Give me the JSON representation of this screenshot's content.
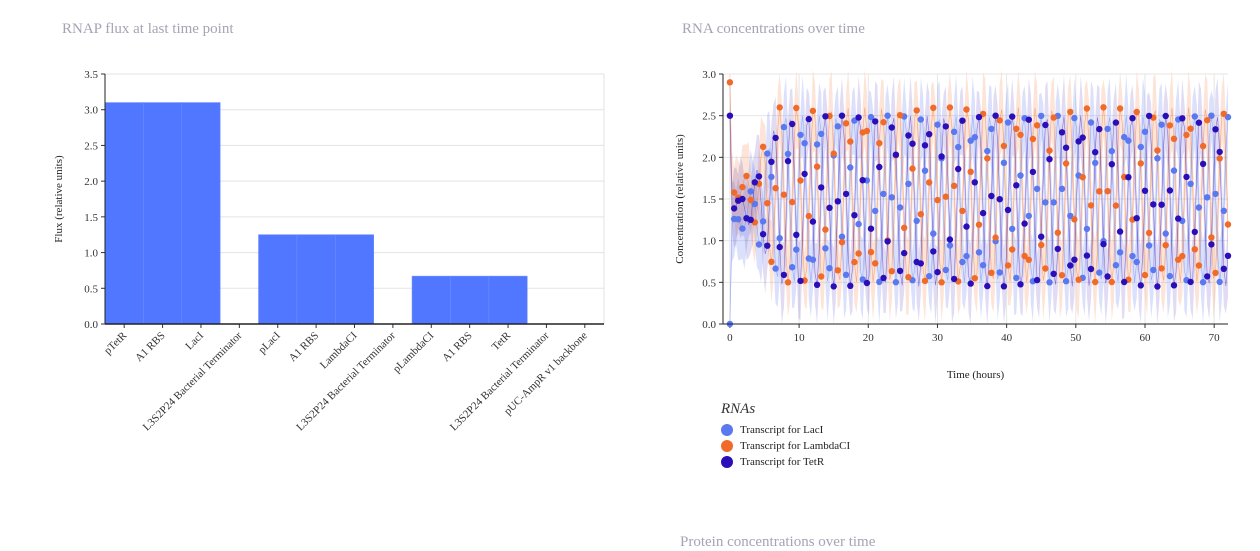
{
  "bar_panel": {
    "title": "RNAP flux at last time point"
  },
  "line_panel": {
    "title": "RNA concentrations over time"
  },
  "next_panel": {
    "title": "Protein concentrations over time"
  },
  "chart_data": [
    {
      "type": "bar",
      "title": "RNAP flux at last time point",
      "xlabel": "",
      "ylabel": "Flux (relative units)",
      "ylim": [
        0,
        3.5
      ],
      "yticks": [
        "0.0",
        "0.5",
        "1.0",
        "1.5",
        "2.0",
        "2.5",
        "3.0",
        "3.5"
      ],
      "categories": [
        "pTetR",
        "A1 RBS",
        "LacI",
        "L3S2P24 Bacterial Terminator",
        "pLacI",
        "A1 RBS",
        "LambdaCI",
        "L3S2P24 Bacterial Terminator",
        "pLambdaCI",
        "A1 RBS",
        "TetR",
        "L3S2P24 Bacterial Terminator",
        "pUC-AmpR v1 backbone"
      ],
      "values": [
        3.1,
        3.1,
        3.1,
        0,
        1.25,
        1.25,
        1.25,
        0,
        0.67,
        0.67,
        0.67,
        0,
        0
      ],
      "color": "#5176ff",
      "grid": true
    },
    {
      "type": "scatter",
      "title": "RNA concentrations over time",
      "xlabel": "Time (hours)",
      "ylabel": "Concentration (relative units)",
      "xlim": [
        -1,
        72
      ],
      "ylim": [
        0,
        3.0
      ],
      "xticks": [
        "0",
        "10",
        "20",
        "30",
        "40",
        "50",
        "60",
        "70"
      ],
      "yticks": [
        "0.0",
        "0.5",
        "1.0",
        "1.5",
        "2.0",
        "2.5",
        "3.0"
      ],
      "legend_title": "RNAs",
      "legend_position": "bottom-left",
      "grid": true,
      "error_bands": true,
      "series": [
        {
          "name": "Transcript for LacI",
          "color": "#5a78f0",
          "initial": 0.0,
          "peak": 2.5,
          "low": 0.5,
          "phase": 0.0
        },
        {
          "name": "Transcript for LambdaCI",
          "color": "#f06a2a",
          "initial": 2.9,
          "peak": 2.6,
          "low": 0.5,
          "phase": 2.1
        },
        {
          "name": "Transcript for TetR",
          "color": "#2a0fb8",
          "initial": 2.5,
          "peak": 2.5,
          "low": 0.45,
          "phase": 4.2
        }
      ]
    }
  ]
}
